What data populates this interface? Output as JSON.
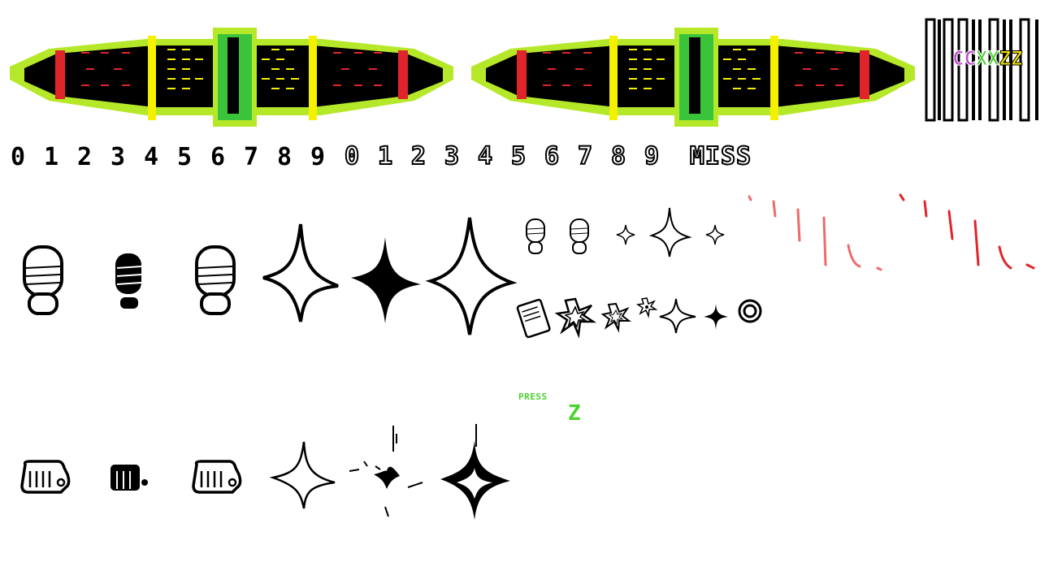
{
  "sheet": {
    "digits_small": [
      "0",
      "1",
      "2",
      "3",
      "4",
      "5",
      "6",
      "7",
      "8",
      "9"
    ],
    "digits_large": [
      "0",
      "1",
      "2",
      "3",
      "4",
      "5",
      "6",
      "7",
      "8",
      "9"
    ],
    "miss_label": "MISS",
    "press_label": "PRESS",
    "key_label": "Z",
    "key_letters": [
      {
        "char": "C",
        "color": "#c34bd1"
      },
      {
        "char": "C",
        "color": "#c34bd1"
      },
      {
        "char": "X",
        "color": "#4bd12f"
      },
      {
        "char": "X",
        "color": "#4bd12f"
      },
      {
        "char": "Z",
        "color": "#f0e000"
      },
      {
        "char": "Z",
        "color": "#f0e000"
      }
    ],
    "colors": {
      "lime": "#b6e82a",
      "green": "#3bc43b",
      "yellow": "#f4f000",
      "red": "#e0252a",
      "pink": "#f06a6a",
      "press_green": "#4bd12f"
    },
    "icons": [
      "note-bar-sprite",
      "note-bar-sprite-copy",
      "barcode-strip",
      "footprint-outline-icon",
      "footprint-filled-icon",
      "footprint-outline-icon",
      "sparkle-outline-icon",
      "sparkle-filled-icon",
      "sparkle-large-outline-icon",
      "small-footprint-icon",
      "small-sparkle-icon",
      "notebook-icon",
      "burst-icon",
      "ring-icon",
      "fist-outline-icon",
      "fist-filled-icon",
      "claw-slash-marks"
    ]
  }
}
